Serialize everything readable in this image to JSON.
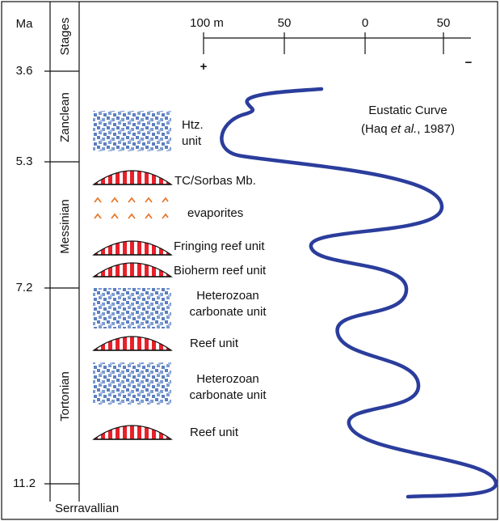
{
  "age_axis": {
    "unit": "Ma",
    "ticks": [
      "3.6",
      "5.3",
      "7.2",
      "11.2"
    ]
  },
  "stages": {
    "title": "Stages",
    "names": [
      "Zanclean",
      "Messinian",
      "Tortonian",
      "Serravallian"
    ]
  },
  "scale": {
    "ticks": [
      "100 m",
      "50",
      "0",
      "50"
    ],
    "plus": "+",
    "minus": "−"
  },
  "curve_label": {
    "title": "Eustatic Curve",
    "citation": [
      "(Haq ",
      "et al.",
      ", 1987)"
    ]
  },
  "units": [
    {
      "label": [
        "Htz.",
        "unit"
      ]
    },
    {
      "label": [
        "TC/Sorbas Mb."
      ]
    },
    {
      "label": [
        "evaporites"
      ]
    },
    {
      "label": [
        "Fringing reef unit"
      ]
    },
    {
      "label": [
        "Bioherm reef unit"
      ]
    },
    {
      "label": [
        "Heterozoan",
        "carbonate unit"
      ]
    },
    {
      "label": [
        "Reef unit"
      ]
    },
    {
      "label": [
        "Heterozoan",
        "carbonate unit"
      ]
    },
    {
      "label": [
        "Reef unit"
      ]
    }
  ]
}
